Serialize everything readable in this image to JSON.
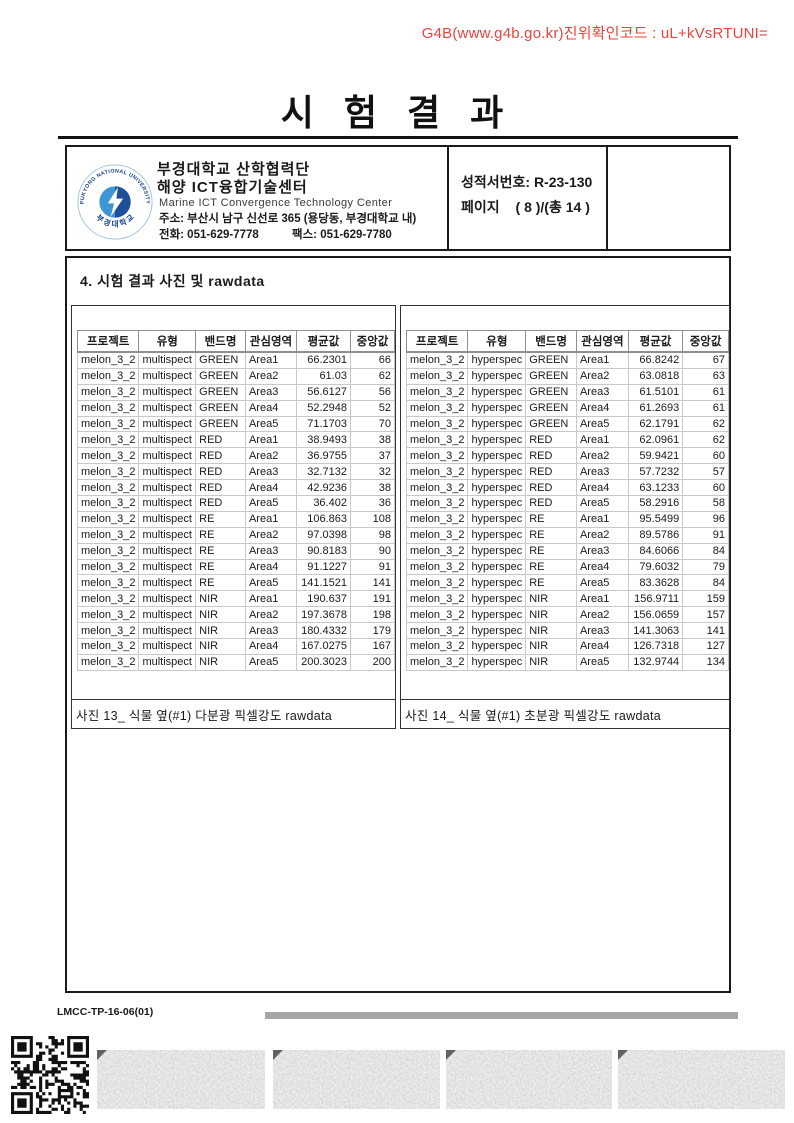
{
  "verification": {
    "text": "G4B(www.g4b.go.kr)진위확인코드 : uL+kVsRTUNI="
  },
  "title": "시 험 결 과",
  "header": {
    "org_line1": "부경대학교 산학협력단",
    "org_line2": "해양 ICT융합기술센터",
    "org_line3": "Marine ICT Convergence Technology Center",
    "address": "주소: 부산시 남구 신선로 365 (용당동, 부경대학교 내)",
    "phone": "전화: 051-629-7778",
    "fax": "팩스:  051-629-7780",
    "report_no_line": "성적서번호: R-23-130",
    "page_label": "페이지",
    "page_value": "( 8 )/(총 14 )",
    "logo_text_top": "PUKYONG NATIONAL UNIVERSITY",
    "logo_text_bottom": "부 경 대 학 교"
  },
  "section_title": "4. 시험 결과 사진 및 rawdata",
  "tables": [
    {
      "caption": "사진 13_ 식물 옆(#1) 다분광 픽셀강도 rawdata",
      "headers": [
        "프로젝트",
        "유형",
        "밴드명",
        "관심영역",
        "평균값",
        "중앙값"
      ],
      "rows": [
        [
          "melon_3_2",
          "multispect",
          "GREEN",
          "Area1",
          "66.2301",
          "66"
        ],
        [
          "melon_3_2",
          "multispect",
          "GREEN",
          "Area2",
          "61.03",
          "62"
        ],
        [
          "melon_3_2",
          "multispect",
          "GREEN",
          "Area3",
          "56.6127",
          "56"
        ],
        [
          "melon_3_2",
          "multispect",
          "GREEN",
          "Area4",
          "52.2948",
          "52"
        ],
        [
          "melon_3_2",
          "multispect",
          "GREEN",
          "Area5",
          "71.1703",
          "70"
        ],
        [
          "melon_3_2",
          "multispect",
          "RED",
          "Area1",
          "38.9493",
          "38"
        ],
        [
          "melon_3_2",
          "multispect",
          "RED",
          "Area2",
          "36.9755",
          "37"
        ],
        [
          "melon_3_2",
          "multispect",
          "RED",
          "Area3",
          "32.7132",
          "32"
        ],
        [
          "melon_3_2",
          "multispect",
          "RED",
          "Area4",
          "42.9236",
          "38"
        ],
        [
          "melon_3_2",
          "multispect",
          "RED",
          "Area5",
          "36.402",
          "36"
        ],
        [
          "melon_3_2",
          "multispect",
          "RE",
          "Area1",
          "106.863",
          "108"
        ],
        [
          "melon_3_2",
          "multispect",
          "RE",
          "Area2",
          "97.0398",
          "98"
        ],
        [
          "melon_3_2",
          "multispect",
          "RE",
          "Area3",
          "90.8183",
          "90"
        ],
        [
          "melon_3_2",
          "multispect",
          "RE",
          "Area4",
          "91.1227",
          "91"
        ],
        [
          "melon_3_2",
          "multispect",
          "RE",
          "Area5",
          "141.1521",
          "141"
        ],
        [
          "melon_3_2",
          "multispect",
          "NIR",
          "Area1",
          "190.637",
          "191"
        ],
        [
          "melon_3_2",
          "multispect",
          "NIR",
          "Area2",
          "197.3678",
          "198"
        ],
        [
          "melon_3_2",
          "multispect",
          "NIR",
          "Area3",
          "180.4332",
          "179"
        ],
        [
          "melon_3_2",
          "multispect",
          "NIR",
          "Area4",
          "167.0275",
          "167"
        ],
        [
          "melon_3_2",
          "multispect",
          "NIR",
          "Area5",
          "200.3023",
          "200"
        ]
      ]
    },
    {
      "caption": "사진 14_ 식물 옆(#1) 초분광 픽셀강도 rawdata",
      "headers": [
        "프로젝트",
        "유형",
        "밴드명",
        "관심영역",
        "평균값",
        "중앙값"
      ],
      "rows": [
        [
          "melon_3_2",
          "hyperspec",
          "GREEN",
          "Area1",
          "66.8242",
          "67"
        ],
        [
          "melon_3_2",
          "hyperspec",
          "GREEN",
          "Area2",
          "63.0818",
          "63"
        ],
        [
          "melon_3_2",
          "hyperspec",
          "GREEN",
          "Area3",
          "61.5101",
          "61"
        ],
        [
          "melon_3_2",
          "hyperspec",
          "GREEN",
          "Area4",
          "61.2693",
          "61"
        ],
        [
          "melon_3_2",
          "hyperspec",
          "GREEN",
          "Area5",
          "62.1791",
          "62"
        ],
        [
          "melon_3_2",
          "hyperspec",
          "RED",
          "Area1",
          "62.0961",
          "62"
        ],
        [
          "melon_3_2",
          "hyperspec",
          "RED",
          "Area2",
          "59.9421",
          "60"
        ],
        [
          "melon_3_2",
          "hyperspec",
          "RED",
          "Area3",
          "57.7232",
          "57"
        ],
        [
          "melon_3_2",
          "hyperspec",
          "RED",
          "Area4",
          "63.1233",
          "60"
        ],
        [
          "melon_3_2",
          "hyperspec",
          "RED",
          "Area5",
          "58.2916",
          "58"
        ],
        [
          "melon_3_2",
          "hyperspec",
          "RE",
          "Area1",
          "95.5499",
          "96"
        ],
        [
          "melon_3_2",
          "hyperspec",
          "RE",
          "Area2",
          "89.5786",
          "91"
        ],
        [
          "melon_3_2",
          "hyperspec",
          "RE",
          "Area3",
          "84.6066",
          "84"
        ],
        [
          "melon_3_2",
          "hyperspec",
          "RE",
          "Area4",
          "79.6032",
          "79"
        ],
        [
          "melon_3_2",
          "hyperspec",
          "RE",
          "Area5",
          "83.3628",
          "84"
        ],
        [
          "melon_3_2",
          "hyperspec",
          "NIR",
          "Area1",
          "156.9711",
          "159"
        ],
        [
          "melon_3_2",
          "hyperspec",
          "NIR",
          "Area2",
          "156.0659",
          "157"
        ],
        [
          "melon_3_2",
          "hyperspec",
          "NIR",
          "Area3",
          "141.3063",
          "141"
        ],
        [
          "melon_3_2",
          "hyperspec",
          "NIR",
          "Area4",
          "126.7318",
          "127"
        ],
        [
          "melon_3_2",
          "hyperspec",
          "NIR",
          "Area5",
          "132.9744",
          "134"
        ]
      ]
    }
  ],
  "footer": {
    "doc_code": "LMCC-TP-16-06(01)"
  },
  "colors": {
    "verification_red": "#e8433c",
    "logo_navy": "#17418e",
    "logo_blue": "#3e97d4",
    "bar_gray": "#a6a6a6"
  }
}
